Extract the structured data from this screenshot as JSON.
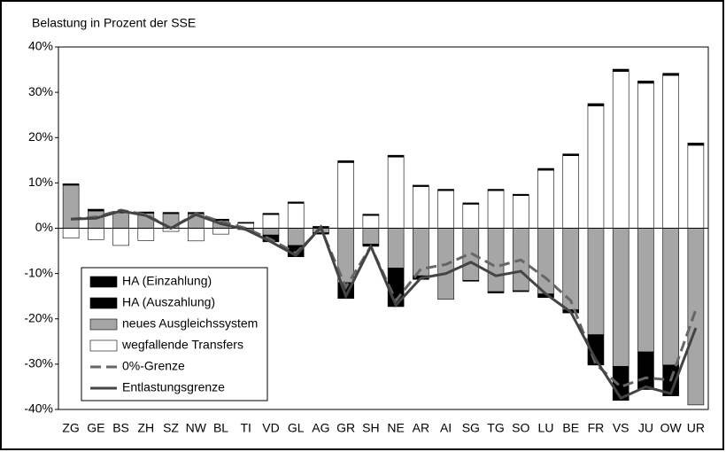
{
  "chart_data": {
    "type": "bar",
    "title": "Belastung in Prozent der SSE",
    "categories": [
      "ZG",
      "GE",
      "BS",
      "ZH",
      "SZ",
      "NW",
      "BL",
      "TI",
      "VD",
      "GL",
      "AG",
      "GR",
      "SH",
      "NE",
      "AR",
      "AI",
      "SG",
      "TG",
      "SO",
      "LU",
      "BE",
      "FR",
      "VS",
      "JU",
      "OW",
      "UR"
    ],
    "series": [
      {
        "name": "HA (Einzahlung)",
        "type": "bar",
        "color": "#000000",
        "values": [
          0.3,
          0.4,
          0.3,
          0.3,
          0.3,
          0.3,
          0.3,
          0.2,
          0.3,
          0.3,
          0.4,
          0.4,
          0.3,
          0.4,
          0.3,
          0.3,
          0.3,
          0.3,
          0.3,
          0.4,
          0.4,
          0.5,
          0.5,
          0.5,
          0.5,
          0.5
        ]
      },
      {
        "name": "HA (Auszahlung)",
        "type": "bar",
        "color": "#000000",
        "values": [
          0,
          0,
          0,
          0,
          0,
          0,
          0,
          0,
          -1.5,
          -2.5,
          -0.3,
          -3.5,
          -0.5,
          -8.5,
          -0.8,
          0,
          -0.2,
          -0.3,
          -0.2,
          -0.8,
          -0.7,
          -6.7,
          -7.5,
          -8.3,
          -6.8,
          0
        ]
      },
      {
        "name": "neues Ausgleichssystem",
        "type": "bar",
        "color": "#a6a6a6",
        "values": [
          9.5,
          3.8,
          3.4,
          3.3,
          3.2,
          3.2,
          1.7,
          -0.3,
          -1.5,
          -3.8,
          -1.0,
          -12,
          -3.5,
          -8.8,
          -10.5,
          -15.7,
          -11.5,
          -14,
          -13.8,
          -14.5,
          -18,
          -23.5,
          -30.5,
          -27.3,
          -30.2,
          -39
        ]
      },
      {
        "name": "wegfallende Transfers",
        "type": "bar",
        "color": "#ffffff",
        "values": [
          -2.2,
          -2.5,
          -3.8,
          -2.7,
          -0.7,
          -2.8,
          -1.3,
          1.1,
          3.0,
          5.5,
          0,
          14.5,
          2.8,
          15.7,
          9.2,
          8.3,
          5.3,
          8.3,
          7.2,
          12.8,
          16,
          27,
          34.6,
          32,
          33.7,
          18.3
        ]
      },
      {
        "name": "0%-Grenze",
        "type": "line",
        "dashed": true,
        "color": "#666666",
        "values": [
          2.0,
          2.5,
          4,
          3,
          0,
          3.2,
          1.5,
          0,
          -2.5,
          -5.5,
          0,
          -13,
          -4,
          -16,
          -9,
          -8,
          -5.5,
          -8.5,
          -7,
          -11,
          -16,
          -30,
          -35,
          -33,
          -33.5,
          -18
        ]
      },
      {
        "name": "Entlastungsgrenze",
        "type": "line",
        "dashed": false,
        "color": "#444444",
        "values": [
          2,
          2.2,
          3.8,
          2.8,
          0,
          3,
          1,
          -0.3,
          -3,
          -6,
          0.3,
          -15,
          -4,
          -17,
          -11,
          -10,
          -7.5,
          -10.5,
          -9.5,
          -14.5,
          -18.5,
          -29,
          -37.5,
          -35,
          -36.5,
          -22
        ]
      }
    ],
    "ylim": [
      -40,
      40
    ],
    "yticks": [
      {
        "value": -40,
        "label": "-40%"
      },
      {
        "value": -30,
        "label": "-30%"
      },
      {
        "value": -20,
        "label": "-20%"
      },
      {
        "value": -10,
        "label": "-10%"
      },
      {
        "value": 0,
        "label": "0%"
      },
      {
        "value": 10,
        "label": "10%"
      },
      {
        "value": 20,
        "label": "20%"
      },
      {
        "value": 30,
        "label": "30%"
      },
      {
        "value": 40,
        "label": "40%"
      }
    ],
    "legend": "lower left"
  }
}
